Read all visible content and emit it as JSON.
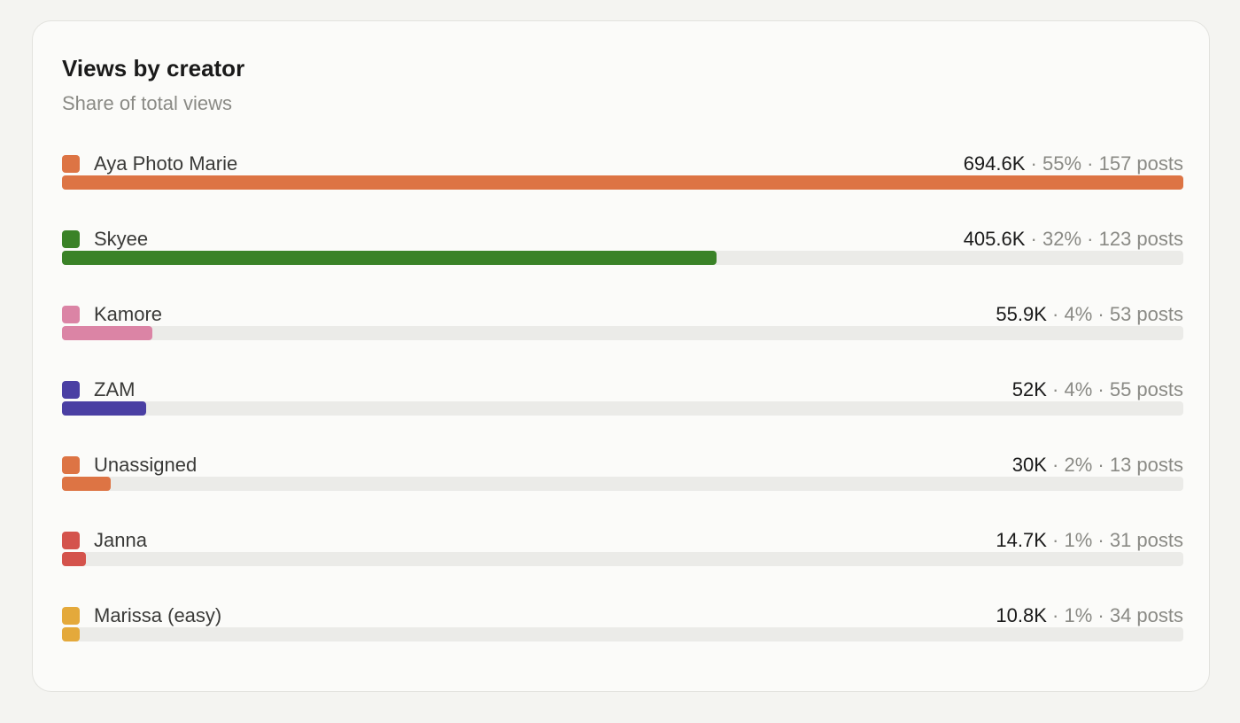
{
  "chart_data": {
    "type": "bar",
    "title": "Views by creator",
    "subtitle": "Share of total views",
    "categories": [
      "Aya Photo Marie",
      "Skyee",
      "Kamore",
      "ZAM",
      "Unassigned",
      "Janna",
      "Marissa (easy)"
    ],
    "values": [
      694.6,
      405.6,
      55.9,
      52,
      30,
      14.7,
      10.8
    ],
    "value_labels": [
      "694.6K",
      "405.6K",
      "55.9K",
      "52K",
      "30K",
      "14.7K",
      "10.8K"
    ],
    "shares": [
      55,
      32,
      4,
      4,
      2,
      1,
      1
    ],
    "share_labels": [
      "55%",
      "32%",
      "4%",
      "4%",
      "2%",
      "1%",
      "1%"
    ],
    "posts": [
      157,
      123,
      53,
      55,
      13,
      31,
      34
    ],
    "post_labels": [
      "157 posts",
      "123 posts",
      "53 posts",
      "55 posts",
      "13 posts",
      "31 posts",
      "34 posts"
    ],
    "colors": [
      "#dd7444",
      "#3a8227",
      "#db84a5",
      "#4a3fa3",
      "#dd7444",
      "#d4534c",
      "#e4a93b"
    ]
  }
}
